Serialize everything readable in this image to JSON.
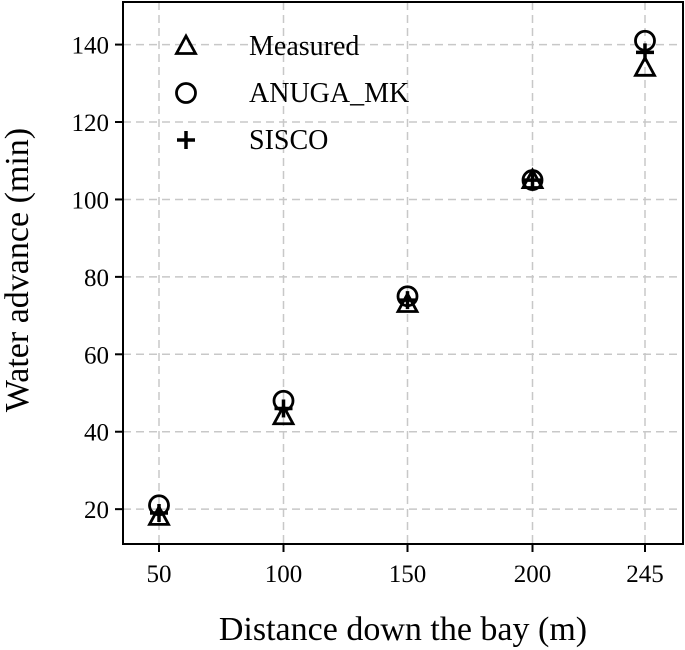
{
  "chart_data": {
    "type": "scatter",
    "title": "",
    "xlabel": "Distance down the bay (m)",
    "ylabel": "Water advance (min)",
    "categories": [
      "50",
      "100",
      "150",
      "200",
      "245"
    ],
    "x": [
      50,
      100,
      150,
      200,
      245
    ],
    "yticks": [
      "20",
      "40",
      "60",
      "80",
      "100",
      "120",
      "140"
    ],
    "ylim": [
      11,
      151
    ],
    "grid": true,
    "legend_position": "top-left",
    "series": [
      {
        "name": "Measured",
        "marker": "triangle",
        "values": [
          18,
          44,
          73,
          105,
          134
        ]
      },
      {
        "name": "ANUGA_MK",
        "marker": "circle",
        "values": [
          21,
          48,
          75,
          105,
          141
        ]
      },
      {
        "name": "SISCO",
        "marker": "plus",
        "values": [
          19,
          46,
          74,
          105,
          138
        ]
      }
    ],
    "colors": {
      "marker": "#000000",
      "grid": "#c8c8c8",
      "axis": "#000000"
    }
  }
}
